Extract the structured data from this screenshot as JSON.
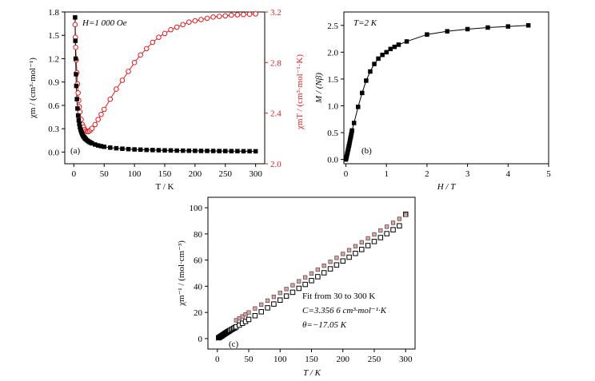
{
  "chart_data": [
    {
      "id": "a",
      "type": "scatter",
      "panel_label": "(a)",
      "annotation": "H=1 000 Oe",
      "xlabel": "T / K",
      "ylabel_left": "χm / (cm³·mol⁻¹)",
      "ylabel_right": "χmT / (cm³·mol⁻¹·K)",
      "xlim": [
        -15,
        315
      ],
      "xticks": [
        0,
        50,
        100,
        150,
        200,
        250,
        300
      ],
      "ylim_left": [
        -0.15,
        1.8
      ],
      "yticks_left": [
        "0.0",
        "0.3",
        "0.6",
        "0.9",
        "1.2",
        "1.5",
        "1.8"
      ],
      "ylim_right": [
        2.0,
        3.2
      ],
      "yticks_right": [
        "2.0",
        "2.4",
        "2.8",
        "3.2"
      ],
      "colors": {
        "chi": "#000000",
        "chiT": "#e41a1c"
      },
      "series": [
        {
          "axis": "left",
          "marker": "filled-square",
          "x": [
            2,
            2.5,
            3,
            3.5,
            4,
            5,
            6,
            7,
            8,
            9,
            10,
            11,
            12,
            13,
            14,
            15,
            16,
            17,
            18,
            19,
            20,
            22,
            24,
            26,
            28,
            30,
            35,
            40,
            45,
            50,
            60,
            70,
            80,
            90,
            100,
            110,
            120,
            130,
            140,
            150,
            160,
            170,
            180,
            190,
            200,
            210,
            220,
            230,
            240,
            250,
            260,
            270,
            280,
            290,
            300
          ],
          "y": [
            1.73,
            1.43,
            1.2,
            1.0,
            0.85,
            0.68,
            0.56,
            0.47,
            0.41,
            0.36,
            0.32,
            0.29,
            0.265,
            0.245,
            0.228,
            0.213,
            0.2,
            0.19,
            0.18,
            0.171,
            0.163,
            0.149,
            0.138,
            0.128,
            0.12,
            0.112,
            0.097,
            0.085,
            0.076,
            0.068,
            0.057,
            0.049,
            0.043,
            0.038,
            0.034,
            0.031,
            0.028,
            0.026,
            0.024,
            0.022,
            0.021,
            0.019,
            0.018,
            0.017,
            0.016,
            0.015,
            0.015,
            0.014,
            0.013,
            0.013,
            0.012,
            0.012,
            0.011,
            0.011,
            0.01
          ]
        },
        {
          "axis": "right",
          "marker": "open-circle",
          "x": [
            2,
            2.5,
            3,
            4,
            5,
            6,
            7,
            8,
            9,
            10,
            12,
            14,
            16,
            18,
            20,
            22,
            24,
            26,
            28,
            30,
            35,
            40,
            45,
            50,
            60,
            70,
            80,
            90,
            100,
            110,
            120,
            130,
            140,
            150,
            160,
            170,
            180,
            190,
            200,
            210,
            220,
            230,
            240,
            250,
            260,
            270,
            280,
            290,
            300
          ],
          "y": [
            3.1,
            3.0,
            2.92,
            2.82,
            2.72,
            2.63,
            2.56,
            2.5,
            2.45,
            2.41,
            2.35,
            2.31,
            2.29,
            2.27,
            2.26,
            2.255,
            2.255,
            2.26,
            2.27,
            2.28,
            2.31,
            2.35,
            2.39,
            2.43,
            2.51,
            2.59,
            2.66,
            2.73,
            2.8,
            2.86,
            2.91,
            2.96,
            3.0,
            3.03,
            3.06,
            3.08,
            3.1,
            3.12,
            3.13,
            3.14,
            3.15,
            3.16,
            3.165,
            3.17,
            3.175,
            3.178,
            3.18,
            3.182,
            3.185
          ]
        }
      ]
    },
    {
      "id": "b",
      "type": "line",
      "panel_label": "(b)",
      "annotation": "T=2 K",
      "xlabel": "H / T",
      "ylabel": "M / (Nβ)",
      "xlim": [
        -0.05,
        5.0
      ],
      "xticks": [
        "0",
        "1",
        "2",
        "3",
        "4",
        "5"
      ],
      "ylim": [
        -0.08,
        2.75
      ],
      "yticks": [
        "0.0",
        "0.5",
        "1.0",
        "1.5",
        "2.0",
        "2.5"
      ],
      "series": [
        {
          "marker": "filled-square",
          "x": [
            0,
            0.01,
            0.02,
            0.03,
            0.04,
            0.05,
            0.06,
            0.07,
            0.08,
            0.09,
            0.1,
            0.11,
            0.12,
            0.13,
            0.14,
            0.15,
            0.2,
            0.3,
            0.4,
            0.5,
            0.6,
            0.7,
            0.8,
            0.9,
            1.0,
            1.1,
            1.2,
            1.3,
            1.5,
            2.0,
            2.5,
            3.0,
            3.5,
            4.0,
            4.5
          ],
          "y": [
            0.0,
            0.03,
            0.06,
            0.1,
            0.13,
            0.17,
            0.2,
            0.24,
            0.27,
            0.31,
            0.35,
            0.39,
            0.42,
            0.46,
            0.5,
            0.54,
            0.68,
            0.98,
            1.24,
            1.47,
            1.64,
            1.78,
            1.88,
            1.95,
            2.0,
            2.06,
            2.1,
            2.14,
            2.2,
            2.33,
            2.39,
            2.43,
            2.46,
            2.48,
            2.5
          ]
        }
      ]
    },
    {
      "id": "c",
      "type": "scatter",
      "panel_label": "(c)",
      "annotation_lines": [
        "Fit from 30 to 300 K",
        "C=3.356 6 cm³·mol⁻¹·K",
        "θ=−17.05 K"
      ],
      "xlabel": "T / K",
      "ylabel": "χm⁻¹ / (mol·cm⁻³)",
      "xlim": [
        -15,
        315
      ],
      "xticks": [
        0,
        50,
        100,
        150,
        200,
        250,
        300
      ],
      "ylim": [
        -8,
        108
      ],
      "yticks": [
        0,
        20,
        40,
        60,
        80,
        100
      ],
      "colors": {
        "fill": "#e8a0a0"
      },
      "series": [
        {
          "marker": "open-square",
          "x": [
            2,
            3,
            4,
            5,
            6,
            7,
            8,
            9,
            10,
            11,
            12,
            13,
            14,
            15,
            16,
            17,
            18,
            19,
            20,
            22,
            24,
            26,
            28,
            30,
            35,
            40,
            45,
            50,
            60,
            70,
            80,
            90,
            100,
            110,
            120,
            130,
            140,
            150,
            160,
            170,
            180,
            190,
            200,
            210,
            220,
            230,
            240,
            250,
            260,
            270,
            280,
            290,
            300
          ],
          "y": [
            0.6,
            0.8,
            1.2,
            1.5,
            1.8,
            2.1,
            2.4,
            2.8,
            3.1,
            3.4,
            3.8,
            4.1,
            4.4,
            4.7,
            5.0,
            5.3,
            5.6,
            5.9,
            6.2,
            6.7,
            7.3,
            7.8,
            8.3,
            9.0,
            10.3,
            11.7,
            13.1,
            14.6,
            17.5,
            20.5,
            23.5,
            26.4,
            29.4,
            32.5,
            35.4,
            38.4,
            41.4,
            44.3,
            47.3,
            50.3,
            53.3,
            56.3,
            59.3,
            62.2,
            65.1,
            68.1,
            71.1,
            74.2,
            77.2,
            80.2,
            83.2,
            86.2,
            95.0
          ]
        },
        {
          "marker": "fit-filled-square",
          "x": [
            30,
            35,
            40,
            45,
            50,
            60,
            70,
            80,
            90,
            100,
            110,
            120,
            130,
            140,
            150,
            160,
            170,
            180,
            190,
            200,
            210,
            220,
            230,
            240,
            250,
            260,
            270,
            280,
            290,
            300
          ],
          "y": [
            14.0,
            15.5,
            17.0,
            18.5,
            20.0,
            23.0,
            26.0,
            29.0,
            31.9,
            34.9,
            37.9,
            40.8,
            43.8,
            46.8,
            49.8,
            52.7,
            55.7,
            58.7,
            61.7,
            64.7,
            67.6,
            70.6,
            73.6,
            76.6,
            79.6,
            82.6,
            85.5,
            88.5,
            91.5,
            94.5
          ]
        }
      ]
    }
  ]
}
